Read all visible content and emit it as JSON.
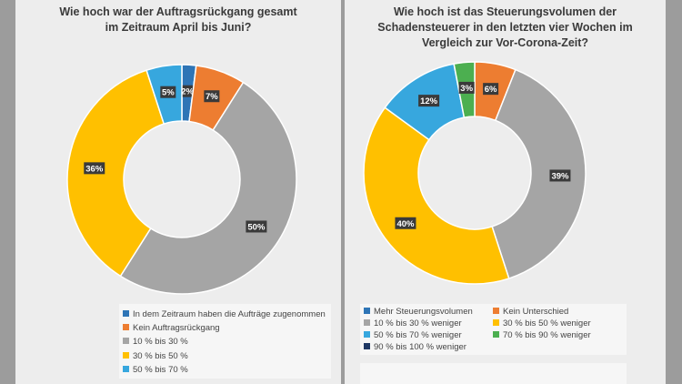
{
  "chart_data": [
    {
      "type": "pie",
      "variant": "donut",
      "title": "Wie hoch war der Auftragsrückgang gesamt im Zeitraum April bis Juni?",
      "categories": [
        "In dem Zeitraum haben die Aufträge zugenommen",
        "Kein Auftragsrückgang",
        "10 % bis 30 %",
        "30 % bis 50 %",
        "50 % bis 70 %"
      ],
      "values": [
        2,
        7,
        50,
        36,
        5
      ],
      "value_labels": [
        "2%",
        "7%",
        "50%",
        "36%",
        "5%"
      ],
      "colors": [
        "#2e75b6",
        "#ed7d31",
        "#a5a5a5",
        "#ffc000",
        "#37a7de"
      ],
      "legend_position": "bottom"
    },
    {
      "type": "pie",
      "variant": "donut",
      "title": "Wie hoch ist das Steuerungsvolumen der Schadensteuerer in den letzten vier Wochen im Vergleich zur Vor-Corona-Zeit?",
      "categories": [
        "Mehr Steuerungsvolumen",
        "Kein Unterschied",
        "10 % bis 30 % weniger",
        "30 % bis 50 % weniger",
        "50 % bis 70 % weniger",
        "70 % bis 90 % weniger",
        "90 % bis 100 % weniger"
      ],
      "values": [
        0,
        6,
        39,
        40,
        12,
        3,
        0
      ],
      "value_labels": [
        "",
        "6%",
        "39%",
        "40%",
        "12%",
        "3%",
        ""
      ],
      "colors": [
        "#2e75b6",
        "#ed7d31",
        "#a5a5a5",
        "#ffc000",
        "#37a7de",
        "#4caf50",
        "#1f3864"
      ],
      "legend_position": "bottom"
    }
  ]
}
